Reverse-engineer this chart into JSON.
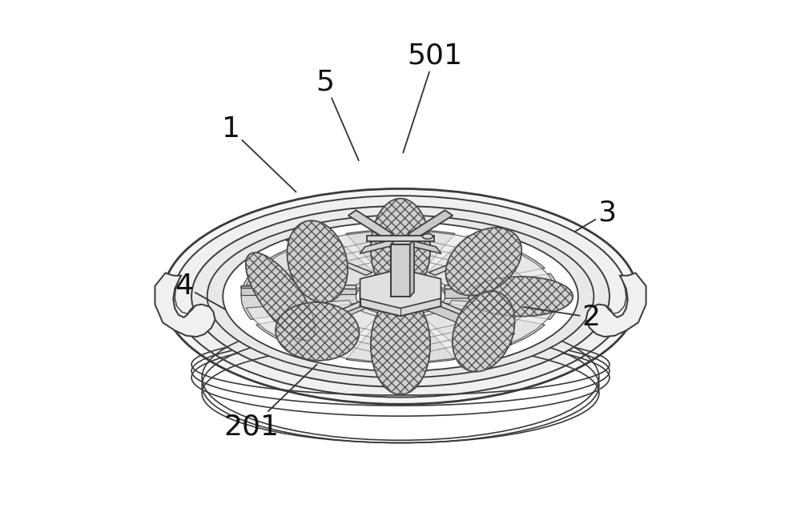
{
  "background_color": "#ffffff",
  "lc": "#555555",
  "dc": "#3a3a3a",
  "fig_width": 10.0,
  "fig_height": 6.55,
  "label_fontsize": 26,
  "labels": {
    "1": [
      0.175,
      0.755,
      0.3,
      0.635
    ],
    "2": [
      0.865,
      0.395,
      0.735,
      0.415
    ],
    "3": [
      0.895,
      0.595,
      0.835,
      0.56
    ],
    "4": [
      0.085,
      0.455,
      0.165,
      0.41
    ],
    "5": [
      0.355,
      0.845,
      0.42,
      0.695
    ],
    "201": [
      0.215,
      0.185,
      0.34,
      0.305
    ],
    "501": [
      0.565,
      0.895,
      0.505,
      0.71
    ]
  }
}
